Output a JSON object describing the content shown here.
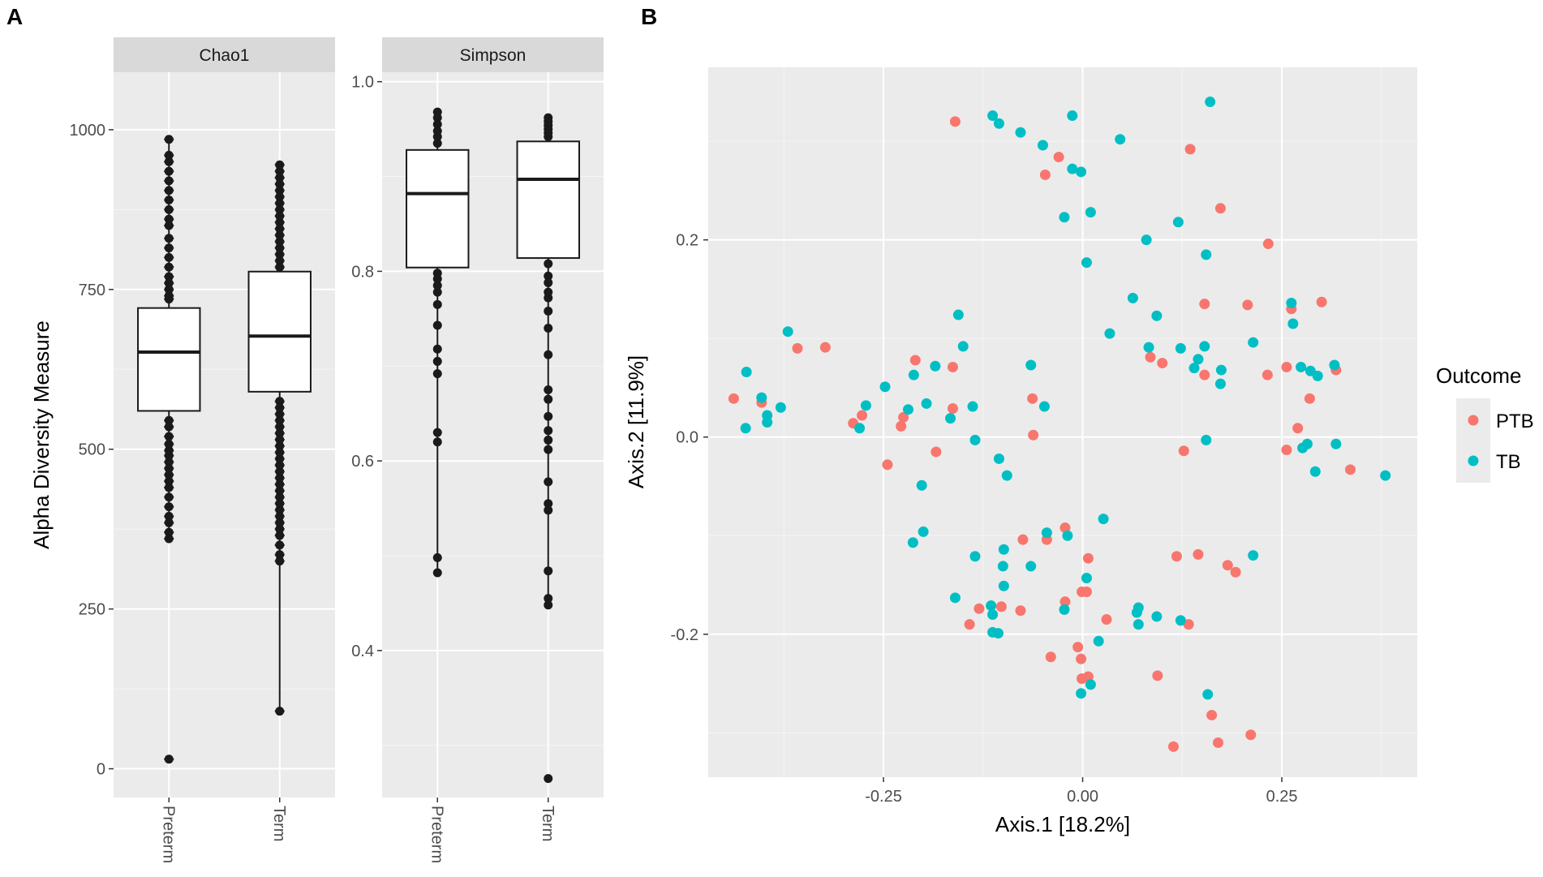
{
  "panels": {
    "a": "A",
    "b": "B"
  },
  "chart_data": [
    {
      "type": "box",
      "id": "chao1",
      "strip_label": "Chao1",
      "ylabel": "Alpha Diversity Measure",
      "ylim": [
        -45,
        1090
      ],
      "yticks": [
        0,
        250,
        500,
        750,
        1000
      ],
      "ytick_labels": [
        "0",
        "250",
        "500",
        "750",
        "1000"
      ],
      "categories": [
        "Preterm",
        "Term"
      ],
      "boxes": [
        {
          "name": "Preterm",
          "q1": 560,
          "median": 652,
          "q3": 721
        },
        {
          "name": "Term",
          "q1": 590,
          "median": 677,
          "q3": 778
        }
      ],
      "points": [
        {
          "category": "Preterm",
          "values": [
            985,
            960,
            950,
            935,
            920,
            905,
            890,
            875,
            860,
            850,
            830,
            815,
            800,
            785,
            770,
            760,
            750,
            740,
            735,
            545,
            535,
            520,
            508,
            498,
            490,
            480,
            470,
            460,
            450,
            440,
            425,
            410,
            395,
            385,
            370,
            360,
            15
          ]
        },
        {
          "category": "Term",
          "values": [
            945,
            935,
            925,
            915,
            905,
            895,
            885,
            875,
            865,
            855,
            845,
            835,
            825,
            815,
            805,
            795,
            785,
            575,
            565,
            555,
            545,
            535,
            525,
            515,
            505,
            495,
            485,
            475,
            465,
            455,
            445,
            435,
            425,
            415,
            405,
            395,
            385,
            375,
            365,
            350,
            335,
            325,
            90
          ]
        }
      ]
    },
    {
      "type": "box",
      "id": "simpson",
      "strip_label": "Simpson",
      "ylim": [
        0.245,
        1.01
      ],
      "yticks": [
        0.4,
        0.6,
        0.8,
        1.0
      ],
      "ytick_labels": [
        "0.4",
        "0.6",
        "0.8",
        "1.0"
      ],
      "categories": [
        "Preterm",
        "Term"
      ],
      "boxes": [
        {
          "name": "Preterm",
          "q1": 0.804,
          "median": 0.882,
          "q3": 0.928
        },
        {
          "name": "Term",
          "q1": 0.814,
          "median": 0.897,
          "q3": 0.937
        }
      ],
      "points": [
        {
          "category": "Preterm",
          "values": [
            0.968,
            0.962,
            0.955,
            0.948,
            0.942,
            0.935,
            0.798,
            0.792,
            0.785,
            0.778,
            0.765,
            0.743,
            0.718,
            0.705,
            0.692,
            0.63,
            0.62,
            0.498,
            0.482
          ]
        },
        {
          "category": "Term",
          "values": [
            0.962,
            0.958,
            0.954,
            0.95,
            0.946,
            0.942,
            0.808,
            0.795,
            0.788,
            0.778,
            0.772,
            0.758,
            0.74,
            0.712,
            0.675,
            0.665,
            0.647,
            0.632,
            0.622,
            0.612,
            0.578,
            0.555,
            0.548,
            0.484,
            0.455,
            0.448,
            0.265
          ]
        }
      ]
    },
    {
      "type": "scatter",
      "id": "pcoa",
      "xlabel": "Axis.1   [18.2%]",
      "ylabel": "Axis.2   [11.9%]",
      "xlim": [
        -0.47,
        0.42
      ],
      "ylim": [
        -0.345,
        0.375
      ],
      "xticks": [
        -0.25,
        0.0,
        0.25
      ],
      "xtick_labels": [
        "-0.25",
        "0.00",
        "0.25"
      ],
      "yticks": [
        -0.2,
        0.0,
        0.2
      ],
      "ytick_labels": [
        "-0.2",
        "0.0",
        "0.2"
      ],
      "legend": {
        "title": "Outcome",
        "position": "right",
        "entries": [
          {
            "label": "PTB",
            "color": "#F8766D"
          },
          {
            "label": "TB",
            "color": "#00BFC4"
          }
        ]
      },
      "series": [
        {
          "name": "PTB",
          "color": "#F8766D",
          "points": [
            [
              -0.16,
              0.32
            ],
            [
              0.135,
              0.292
            ],
            [
              -0.03,
              0.284
            ],
            [
              -0.047,
              0.266
            ],
            [
              0.173,
              0.232
            ],
            [
              0.233,
              0.196
            ],
            [
              0.153,
              0.135
            ],
            [
              0.207,
              0.134
            ],
            [
              0.3,
              0.137
            ],
            [
              0.262,
              0.13
            ],
            [
              -0.358,
              0.09
            ],
            [
              -0.323,
              0.091
            ],
            [
              0.085,
              0.081
            ],
            [
              0.1,
              0.075
            ],
            [
              -0.21,
              0.078
            ],
            [
              -0.163,
              0.071
            ],
            [
              0.153,
              0.063
            ],
            [
              0.232,
              0.063
            ],
            [
              0.256,
              0.071
            ],
            [
              0.318,
              0.068
            ],
            [
              -0.438,
              0.039
            ],
            [
              -0.403,
              0.035
            ],
            [
              -0.063,
              0.039
            ],
            [
              0.285,
              0.039
            ],
            [
              -0.277,
              0.022
            ],
            [
              -0.225,
              0.02
            ],
            [
              -0.163,
              0.029
            ],
            [
              -0.288,
              0.014
            ],
            [
              -0.228,
              0.011
            ],
            [
              0.27,
              0.009
            ],
            [
              -0.062,
              0.002
            ],
            [
              -0.184,
              -0.015
            ],
            [
              0.127,
              -0.014
            ],
            [
              0.256,
              -0.013
            ],
            [
              0.336,
              -0.033
            ],
            [
              -0.245,
              -0.028
            ],
            [
              -0.075,
              -0.104
            ],
            [
              -0.022,
              -0.092
            ],
            [
              -0.045,
              -0.104
            ],
            [
              0.007,
              -0.123
            ],
            [
              0.118,
              -0.121
            ],
            [
              0.145,
              -0.119
            ],
            [
              0.182,
              -0.13
            ],
            [
              0.192,
              -0.137
            ],
            [
              -0.001,
              -0.157
            ],
            [
              0.005,
              -0.157
            ],
            [
              -0.022,
              -0.167
            ],
            [
              -0.13,
              -0.174
            ],
            [
              -0.102,
              -0.172
            ],
            [
              -0.078,
              -0.176
            ],
            [
              0.03,
              -0.185
            ],
            [
              -0.142,
              -0.19
            ],
            [
              0.133,
              -0.19
            ],
            [
              -0.006,
              -0.213
            ],
            [
              -0.04,
              -0.223
            ],
            [
              -0.002,
              -0.225
            ],
            [
              0.007,
              -0.243
            ],
            [
              -0.001,
              -0.245
            ],
            [
              0.094,
              -0.242
            ],
            [
              0.162,
              -0.282
            ],
            [
              0.211,
              -0.302
            ],
            [
              0.17,
              -0.31
            ],
            [
              0.114,
              -0.314
            ]
          ]
        },
        {
          "name": "TB",
          "color": "#00BFC4",
          "points": [
            [
              0.16,
              0.34
            ],
            [
              -0.113,
              0.326
            ],
            [
              -0.013,
              0.326
            ],
            [
              -0.105,
              0.318
            ],
            [
              -0.078,
              0.309
            ],
            [
              0.047,
              0.302
            ],
            [
              -0.05,
              0.296
            ],
            [
              -0.013,
              0.272
            ],
            [
              -0.002,
              0.269
            ],
            [
              0.01,
              0.228
            ],
            [
              -0.023,
              0.223
            ],
            [
              0.12,
              0.218
            ],
            [
              0.08,
              0.2
            ],
            [
              0.155,
              0.185
            ],
            [
              0.005,
              0.177
            ],
            [
              0.063,
              0.141
            ],
            [
              0.262,
              0.136
            ],
            [
              -0.156,
              0.124
            ],
            [
              0.093,
              0.123
            ],
            [
              0.264,
              0.115
            ],
            [
              -0.37,
              0.107
            ],
            [
              0.034,
              0.105
            ],
            [
              -0.15,
              0.092
            ],
            [
              0.083,
              0.091
            ],
            [
              0.123,
              0.09
            ],
            [
              0.153,
              0.092
            ],
            [
              0.214,
              0.096
            ],
            [
              -0.065,
              0.073
            ],
            [
              -0.185,
              0.072
            ],
            [
              0.145,
              0.079
            ],
            [
              0.14,
              0.07
            ],
            [
              0.274,
              0.071
            ],
            [
              0.286,
              0.067
            ],
            [
              0.316,
              0.073
            ],
            [
              -0.422,
              0.066
            ],
            [
              -0.212,
              0.063
            ],
            [
              0.295,
              0.062
            ],
            [
              0.174,
              0.068
            ],
            [
              -0.248,
              0.051
            ],
            [
              0.173,
              0.054
            ],
            [
              -0.403,
              0.04
            ],
            [
              -0.379,
              0.03
            ],
            [
              -0.196,
              0.034
            ],
            [
              -0.272,
              0.032
            ],
            [
              -0.138,
              0.031
            ],
            [
              -0.048,
              0.031
            ],
            [
              -0.219,
              0.028
            ],
            [
              -0.396,
              0.022
            ],
            [
              -0.396,
              0.015
            ],
            [
              -0.166,
              0.019
            ],
            [
              -0.423,
              0.009
            ],
            [
              -0.28,
              0.009
            ],
            [
              -0.135,
              -0.003
            ],
            [
              0.155,
              -0.003
            ],
            [
              0.282,
              -0.007
            ],
            [
              0.318,
              -0.007
            ],
            [
              0.276,
              -0.011
            ],
            [
              -0.105,
              -0.022
            ],
            [
              -0.095,
              -0.039
            ],
            [
              0.292,
              -0.035
            ],
            [
              0.38,
              -0.039
            ],
            [
              -0.202,
              -0.049
            ],
            [
              0.026,
              -0.083
            ],
            [
              -0.2,
              -0.096
            ],
            [
              -0.213,
              -0.107
            ],
            [
              -0.019,
              -0.1
            ],
            [
              -0.045,
              -0.097
            ],
            [
              -0.135,
              -0.121
            ],
            [
              -0.099,
              -0.114
            ],
            [
              0.214,
              -0.12
            ],
            [
              -0.1,
              -0.131
            ],
            [
              -0.065,
              -0.131
            ],
            [
              0.005,
              -0.143
            ],
            [
              -0.099,
              -0.151
            ],
            [
              -0.16,
              -0.163
            ],
            [
              -0.115,
              -0.171
            ],
            [
              0.07,
              -0.173
            ],
            [
              -0.023,
              -0.175
            ],
            [
              0.068,
              -0.178
            ],
            [
              0.093,
              -0.182
            ],
            [
              -0.113,
              -0.18
            ],
            [
              0.123,
              -0.186
            ],
            [
              0.07,
              -0.19
            ],
            [
              -0.113,
              -0.198
            ],
            [
              -0.106,
              -0.199
            ],
            [
              0.02,
              -0.207
            ],
            [
              0.01,
              -0.251
            ],
            [
              -0.002,
              -0.26
            ],
            [
              0.157,
              -0.261
            ]
          ]
        }
      ]
    }
  ]
}
